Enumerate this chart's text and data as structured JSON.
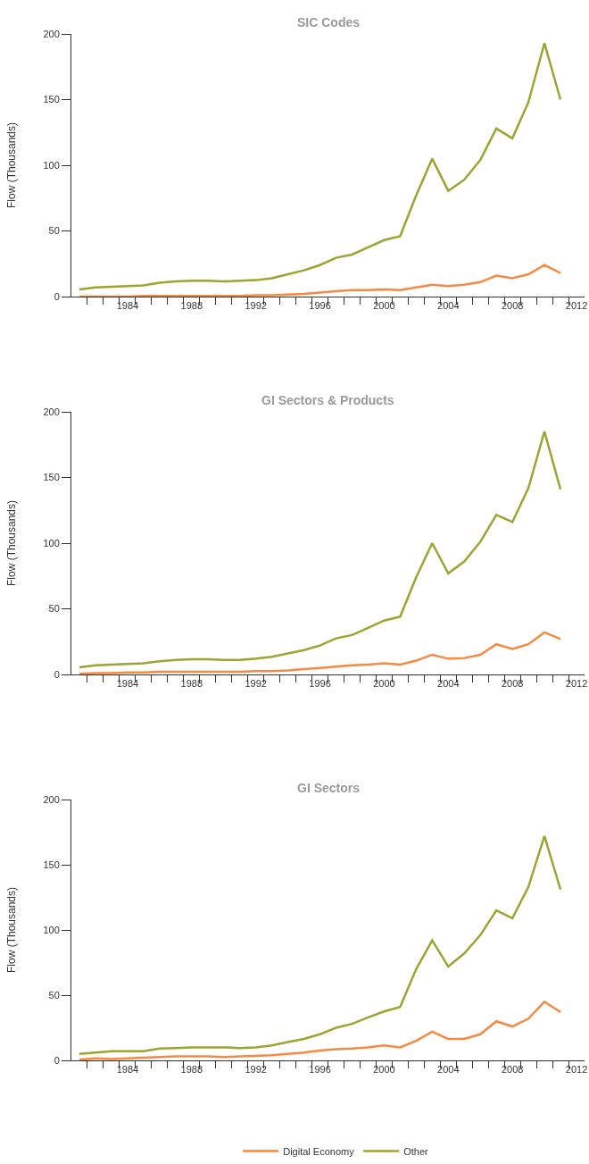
{
  "chart_data": [
    {
      "type": "line",
      "title": "SIC Codes",
      "ylabel": "Flow (Thousands)",
      "x": [
        1981,
        1982,
        1983,
        1984,
        1985,
        1986,
        1987,
        1988,
        1989,
        1990,
        1991,
        1992,
        1993,
        1994,
        1995,
        1996,
        1997,
        1998,
        1999,
        2000,
        2001,
        2002,
        2003,
        2004,
        2005,
        2006,
        2007,
        2008,
        2009,
        2010,
        2011
      ],
      "series": [
        {
          "name": "Digital Economy",
          "color": "#f58a42",
          "values": [
            0,
            0,
            0,
            0,
            0.5,
            0.5,
            0.5,
            0.5,
            0.5,
            0.5,
            0.5,
            1,
            1,
            1.5,
            2,
            3,
            4,
            5,
            5,
            5.5,
            5,
            7,
            9,
            8,
            9,
            11,
            16,
            14,
            17,
            24,
            18
          ]
        },
        {
          "name": "Other",
          "color": "#9aa532",
          "values": [
            5.5,
            7,
            7.5,
            8,
            8.5,
            10.5,
            11.5,
            12,
            12,
            11.5,
            12,
            12.5,
            14,
            17,
            20,
            24,
            29.5,
            32,
            37.5,
            43,
            46,
            77,
            105,
            80.5,
            89,
            104,
            128,
            120.5,
            148,
            193,
            150
          ]
        }
      ],
      "xlim": [
        1980.5,
        2012.5
      ],
      "xticks": [
        {
          "value": 1981.5,
          "label": null
        },
        {
          "value": 1982.5,
          "label": null
        },
        {
          "value": 1983.5,
          "label": null
        },
        1984,
        {
          "value": 1984.5,
          "label": null
        },
        {
          "value": 1985.5,
          "label": null
        },
        {
          "value": 1986.5,
          "label": null
        },
        {
          "value": 1987.5,
          "label": null
        },
        1988,
        {
          "value": 1988.5,
          "label": null
        },
        {
          "value": 1989.5,
          "label": null
        },
        {
          "value": 1990.5,
          "label": null
        },
        {
          "value": 1991.5,
          "label": null
        },
        1992,
        {
          "value": 1992.5,
          "label": null
        },
        {
          "value": 1993.5,
          "label": null
        },
        {
          "value": 1994.5,
          "label": null
        },
        {
          "value": 1995.5,
          "label": null
        },
        1996,
        {
          "value": 1996.5,
          "label": null
        },
        {
          "value": 1997.5,
          "label": null
        },
        {
          "value": 1998.5,
          "label": null
        },
        {
          "value": 1999.5,
          "label": null
        },
        2000,
        {
          "value": 2000.5,
          "label": null
        },
        {
          "value": 2001.5,
          "label": null
        },
        {
          "value": 2002.5,
          "label": null
        },
        {
          "value": 2003.5,
          "label": null
        },
        2004,
        {
          "value": 2004.5,
          "label": null
        },
        {
          "value": 2005.5,
          "label": null
        },
        {
          "value": 2006.5,
          "label": null
        },
        {
          "value": 2007.5,
          "label": null
        },
        2008,
        {
          "value": 2008.5,
          "label": null
        },
        {
          "value": 2009.5,
          "label": null
        },
        {
          "value": 2010.5,
          "label": null
        },
        {
          "value": 2011.5,
          "label": null
        },
        2012
      ],
      "ylim": [
        0,
        200
      ],
      "yticks": [
        0,
        50,
        100,
        150,
        200
      ],
      "marker": "none",
      "line_style": "solid",
      "legend": "bottom"
    },
    {
      "type": "line",
      "title": "GI Sectors & Products",
      "ylabel": "Flow (Thousands)",
      "x": [
        1981,
        1982,
        1983,
        1984,
        1985,
        1986,
        1987,
        1988,
        1989,
        1990,
        1991,
        1992,
        1993,
        1994,
        1995,
        1996,
        1997,
        1998,
        1999,
        2000,
        2001,
        2002,
        2003,
        2004,
        2005,
        2006,
        2007,
        2008,
        2009,
        2010,
        2011
      ],
      "series": [
        {
          "name": "Digital Economy",
          "color": "#f58a42",
          "values": [
            0.5,
            1,
            1,
            1.5,
            1.5,
            2,
            2,
            2,
            2,
            2,
            2,
            2.5,
            2.5,
            3,
            4,
            5,
            6,
            7,
            7.5,
            8.5,
            7.5,
            10.5,
            15,
            12,
            12.5,
            15,
            23,
            19.5,
            23,
            32,
            27
          ]
        },
        {
          "name": "Other",
          "color": "#9aa532",
          "values": [
            5.5,
            7,
            7.5,
            8,
            8.5,
            10,
            11,
            11.5,
            11.5,
            11,
            11,
            12,
            13.5,
            16,
            18.5,
            22,
            27.5,
            30,
            35.5,
            41,
            44,
            74,
            100,
            77,
            86,
            101,
            121.5,
            116,
            142,
            185,
            141
          ]
        }
      ],
      "xlim": [
        1980.5,
        2012.5
      ],
      "xticks": [
        {
          "value": 1981.5,
          "label": null
        },
        {
          "value": 1982.5,
          "label": null
        },
        {
          "value": 1983.5,
          "label": null
        },
        1984,
        {
          "value": 1984.5,
          "label": null
        },
        {
          "value": 1985.5,
          "label": null
        },
        {
          "value": 1986.5,
          "label": null
        },
        {
          "value": 1987.5,
          "label": null
        },
        1988,
        {
          "value": 1988.5,
          "label": null
        },
        {
          "value": 1989.5,
          "label": null
        },
        {
          "value": 1990.5,
          "label": null
        },
        {
          "value": 1991.5,
          "label": null
        },
        1992,
        {
          "value": 1992.5,
          "label": null
        },
        {
          "value": 1993.5,
          "label": null
        },
        {
          "value": 1994.5,
          "label": null
        },
        {
          "value": 1995.5,
          "label": null
        },
        1996,
        {
          "value": 1996.5,
          "label": null
        },
        {
          "value": 1997.5,
          "label": null
        },
        {
          "value": 1998.5,
          "label": null
        },
        {
          "value": 1999.5,
          "label": null
        },
        2000,
        {
          "value": 2000.5,
          "label": null
        },
        {
          "value": 2001.5,
          "label": null
        },
        {
          "value": 2002.5,
          "label": null
        },
        {
          "value": 2003.5,
          "label": null
        },
        2004,
        {
          "value": 2004.5,
          "label": null
        },
        {
          "value": 2005.5,
          "label": null
        },
        {
          "value": 2006.5,
          "label": null
        },
        {
          "value": 2007.5,
          "label": null
        },
        2008,
        {
          "value": 2008.5,
          "label": null
        },
        {
          "value": 2009.5,
          "label": null
        },
        {
          "value": 2010.5,
          "label": null
        },
        {
          "value": 2011.5,
          "label": null
        },
        2012
      ],
      "ylim": [
        0,
        200
      ],
      "yticks": [
        0,
        50,
        100,
        150,
        200
      ],
      "marker": "none",
      "line_style": "solid",
      "legend": "bottom"
    },
    {
      "type": "line",
      "title": "GI Sectors",
      "ylabel": "Flow (Thousands)",
      "x": [
        1981,
        1982,
        1983,
        1984,
        1985,
        1986,
        1987,
        1988,
        1989,
        1990,
        1991,
        1992,
        1993,
        1994,
        1995,
        1996,
        1997,
        1998,
        1999,
        2000,
        2001,
        2002,
        2003,
        2004,
        2005,
        2006,
        2007,
        2008,
        2009,
        2010,
        2011
      ],
      "series": [
        {
          "name": "Digital Economy",
          "color": "#f58a42",
          "values": [
            0.5,
            1.5,
            1,
            1.5,
            2,
            2.5,
            3,
            3,
            3,
            2.5,
            3,
            3.5,
            4,
            5,
            6,
            7.5,
            8.5,
            9,
            10,
            11.5,
            10,
            15,
            22,
            16.5,
            16.5,
            20,
            30,
            26,
            32,
            45,
            37
          ]
        },
        {
          "name": "Other",
          "color": "#9aa532",
          "values": [
            5,
            6,
            7,
            7,
            7,
            9,
            9.5,
            10,
            10,
            10,
            9.5,
            10,
            11.5,
            14,
            16.5,
            20,
            25,
            28,
            33,
            37.5,
            41,
            70,
            92,
            72,
            82,
            96,
            115,
            109,
            133,
            172,
            131
          ]
        }
      ],
      "xlim": [
        1980.5,
        2012.5
      ],
      "xticks": [
        {
          "value": 1981.5,
          "label": null
        },
        {
          "value": 1982.5,
          "label": null
        },
        {
          "value": 1983.5,
          "label": null
        },
        1984,
        {
          "value": 1984.5,
          "label": null
        },
        {
          "value": 1985.5,
          "label": null
        },
        {
          "value": 1986.5,
          "label": null
        },
        {
          "value": 1987.5,
          "label": null
        },
        1988,
        {
          "value": 1988.5,
          "label": null
        },
        {
          "value": 1989.5,
          "label": null
        },
        {
          "value": 1990.5,
          "label": null
        },
        {
          "value": 1991.5,
          "label": null
        },
        1992,
        {
          "value": 1992.5,
          "label": null
        },
        {
          "value": 1993.5,
          "label": null
        },
        {
          "value": 1994.5,
          "label": null
        },
        {
          "value": 1995.5,
          "label": null
        },
        1996,
        {
          "value": 1996.5,
          "label": null
        },
        {
          "value": 1997.5,
          "label": null
        },
        {
          "value": 1998.5,
          "label": null
        },
        {
          "value": 1999.5,
          "label": null
        },
        2000,
        {
          "value": 2000.5,
          "label": null
        },
        {
          "value": 2001.5,
          "label": null
        },
        {
          "value": 2002.5,
          "label": null
        },
        {
          "value": 2003.5,
          "label": null
        },
        2004,
        {
          "value": 2004.5,
          "label": null
        },
        {
          "value": 2005.5,
          "label": null
        },
        {
          "value": 2006.5,
          "label": null
        },
        {
          "value": 2007.5,
          "label": null
        },
        2008,
        {
          "value": 2008.5,
          "label": null
        },
        {
          "value": 2009.5,
          "label": null
        },
        {
          "value": 2010.5,
          "label": null
        },
        {
          "value": 2011.5,
          "label": null
        },
        2012
      ],
      "ylim": [
        0,
        200
      ],
      "yticks": [
        0,
        50,
        100,
        150,
        200
      ],
      "marker": "none",
      "line_style": "solid",
      "legend": "bottom"
    }
  ]
}
